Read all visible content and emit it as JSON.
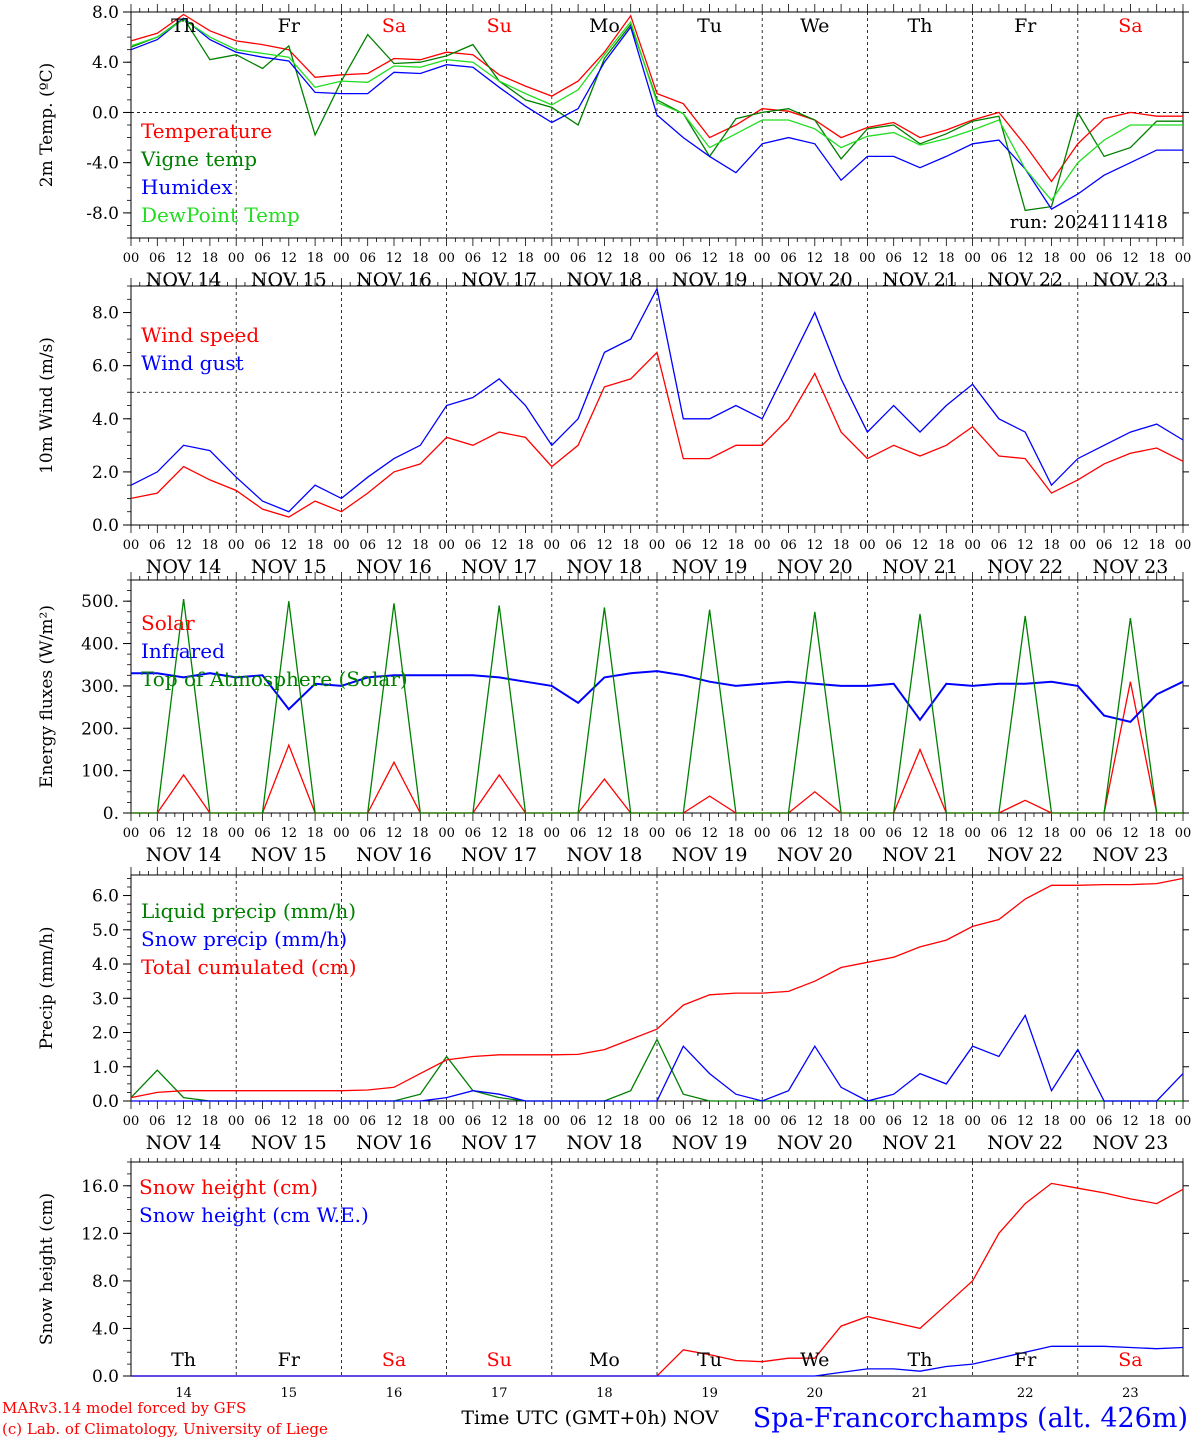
{
  "run_label": "run: 2024111418",
  "footer": {
    "model_line": "MARv3.14 model forced by GFS",
    "credit_line": "(c) Lab. of Climatology, University of Liege",
    "time_axis": "Time UTC (GMT+0h) NOV",
    "station": "Spa-Francorchamps (alt. 426m)"
  },
  "hour_ticks": [
    "00",
    "06",
    "12",
    "18"
  ],
  "date_labels": [
    "NOV 14",
    "NOV 15",
    "NOV 16",
    "NOV 17",
    "NOV 18",
    "NOV 19",
    "NOV 20",
    "NOV 21",
    "NOV 22",
    "NOV 23"
  ],
  "day_names": [
    "Th",
    "Fr",
    "Sa",
    "Su",
    "Mo",
    "Tu",
    "We",
    "Th",
    "Fr",
    "Sa"
  ],
  "day_numbers": [
    "14",
    "15",
    "16",
    "17",
    "18",
    "19",
    "20",
    "21",
    "22",
    "23"
  ],
  "colors": {
    "red": "#ff0000",
    "green": "#008000",
    "blue": "#0000ff",
    "lightgreen": "#22dd22",
    "axis": "#000000",
    "weekend": "#ff0000"
  },
  "chart_data": [
    {
      "type": "line",
      "ylabel": "2m Temp. (ºC)",
      "ylim": [
        -10,
        8
      ],
      "yticks": [
        8,
        4,
        0,
        -4,
        -8
      ],
      "ytick_labels": [
        "8.0",
        "4.0",
        "0.0",
        "-4.0",
        "-8.0"
      ],
      "ref_line": 0,
      "x": [
        0,
        6,
        12,
        18,
        24,
        30,
        36,
        42,
        48,
        54,
        60,
        66,
        72,
        78,
        84,
        90,
        96,
        102,
        108,
        114,
        120,
        126,
        132,
        138,
        144,
        150,
        156,
        162,
        168,
        174,
        180,
        186,
        192,
        198,
        204,
        210,
        216,
        222,
        228,
        234,
        240
      ],
      "series": [
        {
          "name": "Temperature",
          "color": "red",
          "values": [
            5.7,
            6.3,
            7.8,
            6.5,
            5.7,
            5.4,
            5.0,
            2.8,
            3.0,
            3.1,
            4.3,
            4.2,
            4.8,
            4.6,
            3.0,
            2.1,
            1.3,
            2.5,
            4.8,
            7.7,
            1.5,
            0.7,
            -2.0,
            -1.0,
            0.3,
            0.1,
            -0.6,
            -2.0,
            -1.2,
            -0.8,
            -2.0,
            -1.4,
            -0.6,
            0.0,
            -2.6,
            -5.5,
            -2.5,
            -0.5,
            0.0,
            -0.3,
            -0.3
          ]
        },
        {
          "name": "Vigne temp",
          "color": "green",
          "values": [
            5.2,
            6.0,
            7.5,
            4.2,
            4.6,
            3.5,
            5.3,
            -1.8,
            2.5,
            6.2,
            3.9,
            4.0,
            4.5,
            5.4,
            2.5,
            1.0,
            0.4,
            -1.0,
            4.3,
            7.0,
            1.0,
            -0.1,
            -3.5,
            -0.5,
            0.0,
            0.3,
            -0.6,
            -3.7,
            -1.3,
            -1.0,
            -2.5,
            -1.7,
            -0.7,
            -0.3,
            -7.8,
            -7.5,
            0.0,
            -3.5,
            -2.8,
            -0.7,
            -0.7
          ]
        },
        {
          "name": "Humidex",
          "color": "blue",
          "values": [
            5.0,
            5.8,
            7.5,
            5.8,
            4.8,
            4.4,
            4.1,
            1.6,
            1.5,
            1.5,
            3.2,
            3.1,
            3.8,
            3.6,
            2.0,
            0.5,
            -0.8,
            0.3,
            4.0,
            6.8,
            -0.2,
            -2.0,
            -3.5,
            -4.8,
            -2.5,
            -2.0,
            -2.5,
            -5.4,
            -3.5,
            -3.5,
            -4.4,
            -3.5,
            -2.5,
            -2.2,
            -4.5,
            -7.7,
            -6.5,
            -5.0,
            -4.0,
            -3.0,
            -3.0
          ]
        },
        {
          "name": "DewPoint Temp",
          "color": "lightgreen",
          "values": [
            5.3,
            6.0,
            7.4,
            6.0,
            5.0,
            4.7,
            4.4,
            2.0,
            2.5,
            2.4,
            3.7,
            3.6,
            4.2,
            4.0,
            2.5,
            1.5,
            0.6,
            1.8,
            4.6,
            7.2,
            0.8,
            -0.1,
            -2.8,
            -1.7,
            -0.6,
            -0.6,
            -1.3,
            -2.8,
            -1.9,
            -1.6,
            -2.6,
            -2.1,
            -1.4,
            -0.6,
            -4.5,
            -7.0,
            -4.0,
            -2.2,
            -1.0,
            -1.0,
            -1.0
          ]
        }
      ]
    },
    {
      "type": "line",
      "ylabel": "10m Wind (m/s)",
      "ylim": [
        0,
        9
      ],
      "yticks": [
        0,
        2,
        4,
        6,
        8
      ],
      "ytick_labels": [
        "0.0",
        "2.0",
        "4.0",
        "6.0",
        "8.0"
      ],
      "ref_line": 5,
      "x": [
        0,
        6,
        12,
        18,
        24,
        30,
        36,
        42,
        48,
        54,
        60,
        66,
        72,
        78,
        84,
        90,
        96,
        102,
        108,
        114,
        120,
        126,
        132,
        138,
        144,
        150,
        156,
        162,
        168,
        174,
        180,
        186,
        192,
        198,
        204,
        210,
        216,
        222,
        228,
        234,
        240
      ],
      "series": [
        {
          "name": "Wind speed",
          "color": "red",
          "values": [
            1.0,
            1.2,
            2.2,
            1.7,
            1.3,
            0.6,
            0.3,
            0.9,
            0.5,
            1.2,
            2.0,
            2.3,
            3.3,
            3.0,
            3.5,
            3.3,
            2.2,
            3.0,
            5.2,
            5.5,
            6.5,
            2.5,
            2.5,
            3.0,
            3.0,
            4.0,
            5.7,
            3.5,
            2.5,
            3.0,
            2.6,
            3.0,
            3.7,
            2.6,
            2.5,
            1.2,
            1.7,
            2.3,
            2.7,
            2.9,
            2.4
          ]
        },
        {
          "name": "Wind gust",
          "color": "blue",
          "values": [
            1.5,
            2.0,
            3.0,
            2.8,
            1.8,
            0.9,
            0.5,
            1.5,
            1.0,
            1.8,
            2.5,
            3.0,
            4.5,
            4.8,
            5.5,
            4.5,
            3.0,
            4.0,
            6.5,
            7.0,
            8.9,
            4.0,
            4.0,
            4.5,
            4.0,
            6.0,
            8.0,
            5.5,
            3.5,
            4.5,
            3.5,
            4.5,
            5.3,
            4.0,
            3.5,
            1.5,
            2.5,
            3.0,
            3.5,
            3.8,
            3.2
          ]
        }
      ]
    },
    {
      "type": "line",
      "ylabel": "Energy fluxes (W/m²)",
      "ylim": [
        0,
        550
      ],
      "yticks": [
        0,
        100,
        200,
        300,
        400,
        500
      ],
      "ytick_labels": [
        "0.",
        "100.",
        "200.",
        "300.",
        "400.",
        "500."
      ],
      "x": [
        0,
        6,
        12,
        18,
        24,
        30,
        36,
        42,
        48,
        54,
        60,
        66,
        72,
        78,
        84,
        90,
        96,
        102,
        108,
        114,
        120,
        126,
        132,
        138,
        144,
        150,
        156,
        162,
        168,
        174,
        180,
        186,
        192,
        198,
        204,
        210,
        216,
        222,
        228,
        234,
        240
      ],
      "series": [
        {
          "name": "Solar",
          "color": "red",
          "values": [
            0,
            0,
            90,
            0,
            0,
            0,
            160,
            0,
            0,
            0,
            120,
            0,
            0,
            0,
            90,
            0,
            0,
            0,
            80,
            0,
            0,
            0,
            40,
            0,
            0,
            0,
            50,
            0,
            0,
            0,
            150,
            0,
            0,
            0,
            30,
            0,
            0,
            0,
            310,
            0,
            0
          ]
        },
        {
          "name": "Infrared",
          "color": "blue",
          "values": [
            330,
            330,
            320,
            330,
            320,
            325,
            245,
            305,
            300,
            320,
            325,
            325,
            325,
            325,
            320,
            310,
            300,
            260,
            320,
            330,
            335,
            325,
            310,
            300,
            305,
            310,
            305,
            300,
            300,
            305,
            220,
            305,
            300,
            305,
            305,
            310,
            300,
            230,
            215,
            280,
            310
          ]
        },
        {
          "name": "Top of Atmosphere (Solar)",
          "color": "green",
          "values": [
            0,
            0,
            505,
            0,
            0,
            0,
            500,
            0,
            0,
            0,
            495,
            0,
            0,
            0,
            490,
            0,
            0,
            0,
            485,
            0,
            0,
            0,
            480,
            0,
            0,
            0,
            475,
            0,
            0,
            0,
            470,
            0,
            0,
            0,
            465,
            0,
            0,
            0,
            460,
            0,
            0
          ]
        }
      ]
    },
    {
      "type": "line",
      "ylabel": "Precip (mm/h)",
      "ylim": [
        0,
        6.6
      ],
      "yticks": [
        0,
        1,
        2,
        3,
        4,
        5,
        6
      ],
      "ytick_labels": [
        "0.0",
        "1.0",
        "2.0",
        "3.0",
        "4.0",
        "5.0",
        "6.0"
      ],
      "x": [
        0,
        6,
        12,
        18,
        24,
        30,
        36,
        42,
        48,
        54,
        60,
        66,
        72,
        78,
        84,
        90,
        96,
        102,
        108,
        114,
        120,
        126,
        132,
        138,
        144,
        150,
        156,
        162,
        168,
        174,
        180,
        186,
        192,
        198,
        204,
        210,
        216,
        222,
        228,
        234,
        240
      ],
      "series": [
        {
          "name": "Liquid precip (mm/h)",
          "color": "green",
          "values": [
            0.1,
            0.9,
            0.1,
            0,
            0,
            0,
            0,
            0,
            0,
            0,
            0,
            0.2,
            1.3,
            0.3,
            0.1,
            0,
            0,
            0,
            0,
            0.3,
            1.8,
            0.2,
            0,
            0,
            0,
            0,
            0,
            0,
            0,
            0,
            0,
            0,
            0,
            0,
            0,
            0,
            0,
            0,
            0,
            0,
            0
          ]
        },
        {
          "name": "Snow precip (mm/h)",
          "color": "blue",
          "values": [
            0,
            0,
            0,
            0,
            0,
            0,
            0,
            0,
            0,
            0,
            0,
            0,
            0.1,
            0.3,
            0.2,
            0,
            0,
            0,
            0,
            0,
            0,
            1.6,
            0.8,
            0.2,
            0,
            0.3,
            1.6,
            0.4,
            0,
            0.2,
            0.8,
            0.5,
            1.6,
            1.3,
            2.5,
            0.3,
            1.5,
            0,
            0,
            0,
            0.8
          ]
        },
        {
          "name": "Total cumulated (cm)",
          "color": "red",
          "values": [
            0.1,
            0.25,
            0.3,
            0.3,
            0.3,
            0.3,
            0.3,
            0.3,
            0.3,
            0.32,
            0.4,
            0.8,
            1.2,
            1.3,
            1.35,
            1.35,
            1.35,
            1.36,
            1.5,
            1.8,
            2.1,
            2.8,
            3.1,
            3.15,
            3.15,
            3.2,
            3.5,
            3.9,
            4.05,
            4.2,
            4.5,
            4.7,
            5.1,
            5.3,
            5.9,
            6.3,
            6.3,
            6.32,
            6.32,
            6.35,
            6.5
          ]
        }
      ]
    },
    {
      "type": "line",
      "ylabel": "Snow height (cm)",
      "ylim": [
        0,
        18
      ],
      "yticks": [
        0,
        4,
        8,
        12,
        16
      ],
      "ytick_labels": [
        "0.0",
        "4.0",
        "8.0",
        "12.0",
        "16.0"
      ],
      "x": [
        0,
        6,
        12,
        18,
        24,
        30,
        36,
        42,
        48,
        54,
        60,
        66,
        72,
        78,
        84,
        90,
        96,
        102,
        108,
        114,
        120,
        126,
        132,
        138,
        144,
        150,
        156,
        162,
        168,
        174,
        180,
        186,
        192,
        198,
        204,
        210,
        216,
        222,
        228,
        234,
        240
      ],
      "series": [
        {
          "name": "Snow height (cm)",
          "color": "red",
          "values": [
            0,
            0,
            0,
            0,
            0,
            0,
            0,
            0,
            0,
            0,
            0,
            0,
            0,
            0,
            0,
            0,
            0,
            0,
            0,
            0,
            0,
            2.2,
            1.8,
            1.3,
            1.2,
            1.5,
            1.5,
            4.2,
            5.0,
            4.5,
            4.0,
            6.0,
            8.0,
            12.0,
            14.5,
            16.2,
            15.8,
            15.4,
            14.9,
            14.5,
            15.7
          ]
        },
        {
          "name": "Snow height (cm W.E.)",
          "color": "blue",
          "values": [
            0,
            0,
            0,
            0,
            0,
            0,
            0,
            0,
            0,
            0,
            0,
            0,
            0,
            0,
            0,
            0,
            0,
            0,
            0,
            0,
            0,
            0,
            0,
            0,
            0,
            0,
            0,
            0.3,
            0.6,
            0.6,
            0.4,
            0.8,
            1.0,
            1.5,
            2.0,
            2.5,
            2.5,
            2.5,
            2.4,
            2.3,
            2.4
          ]
        }
      ]
    }
  ]
}
